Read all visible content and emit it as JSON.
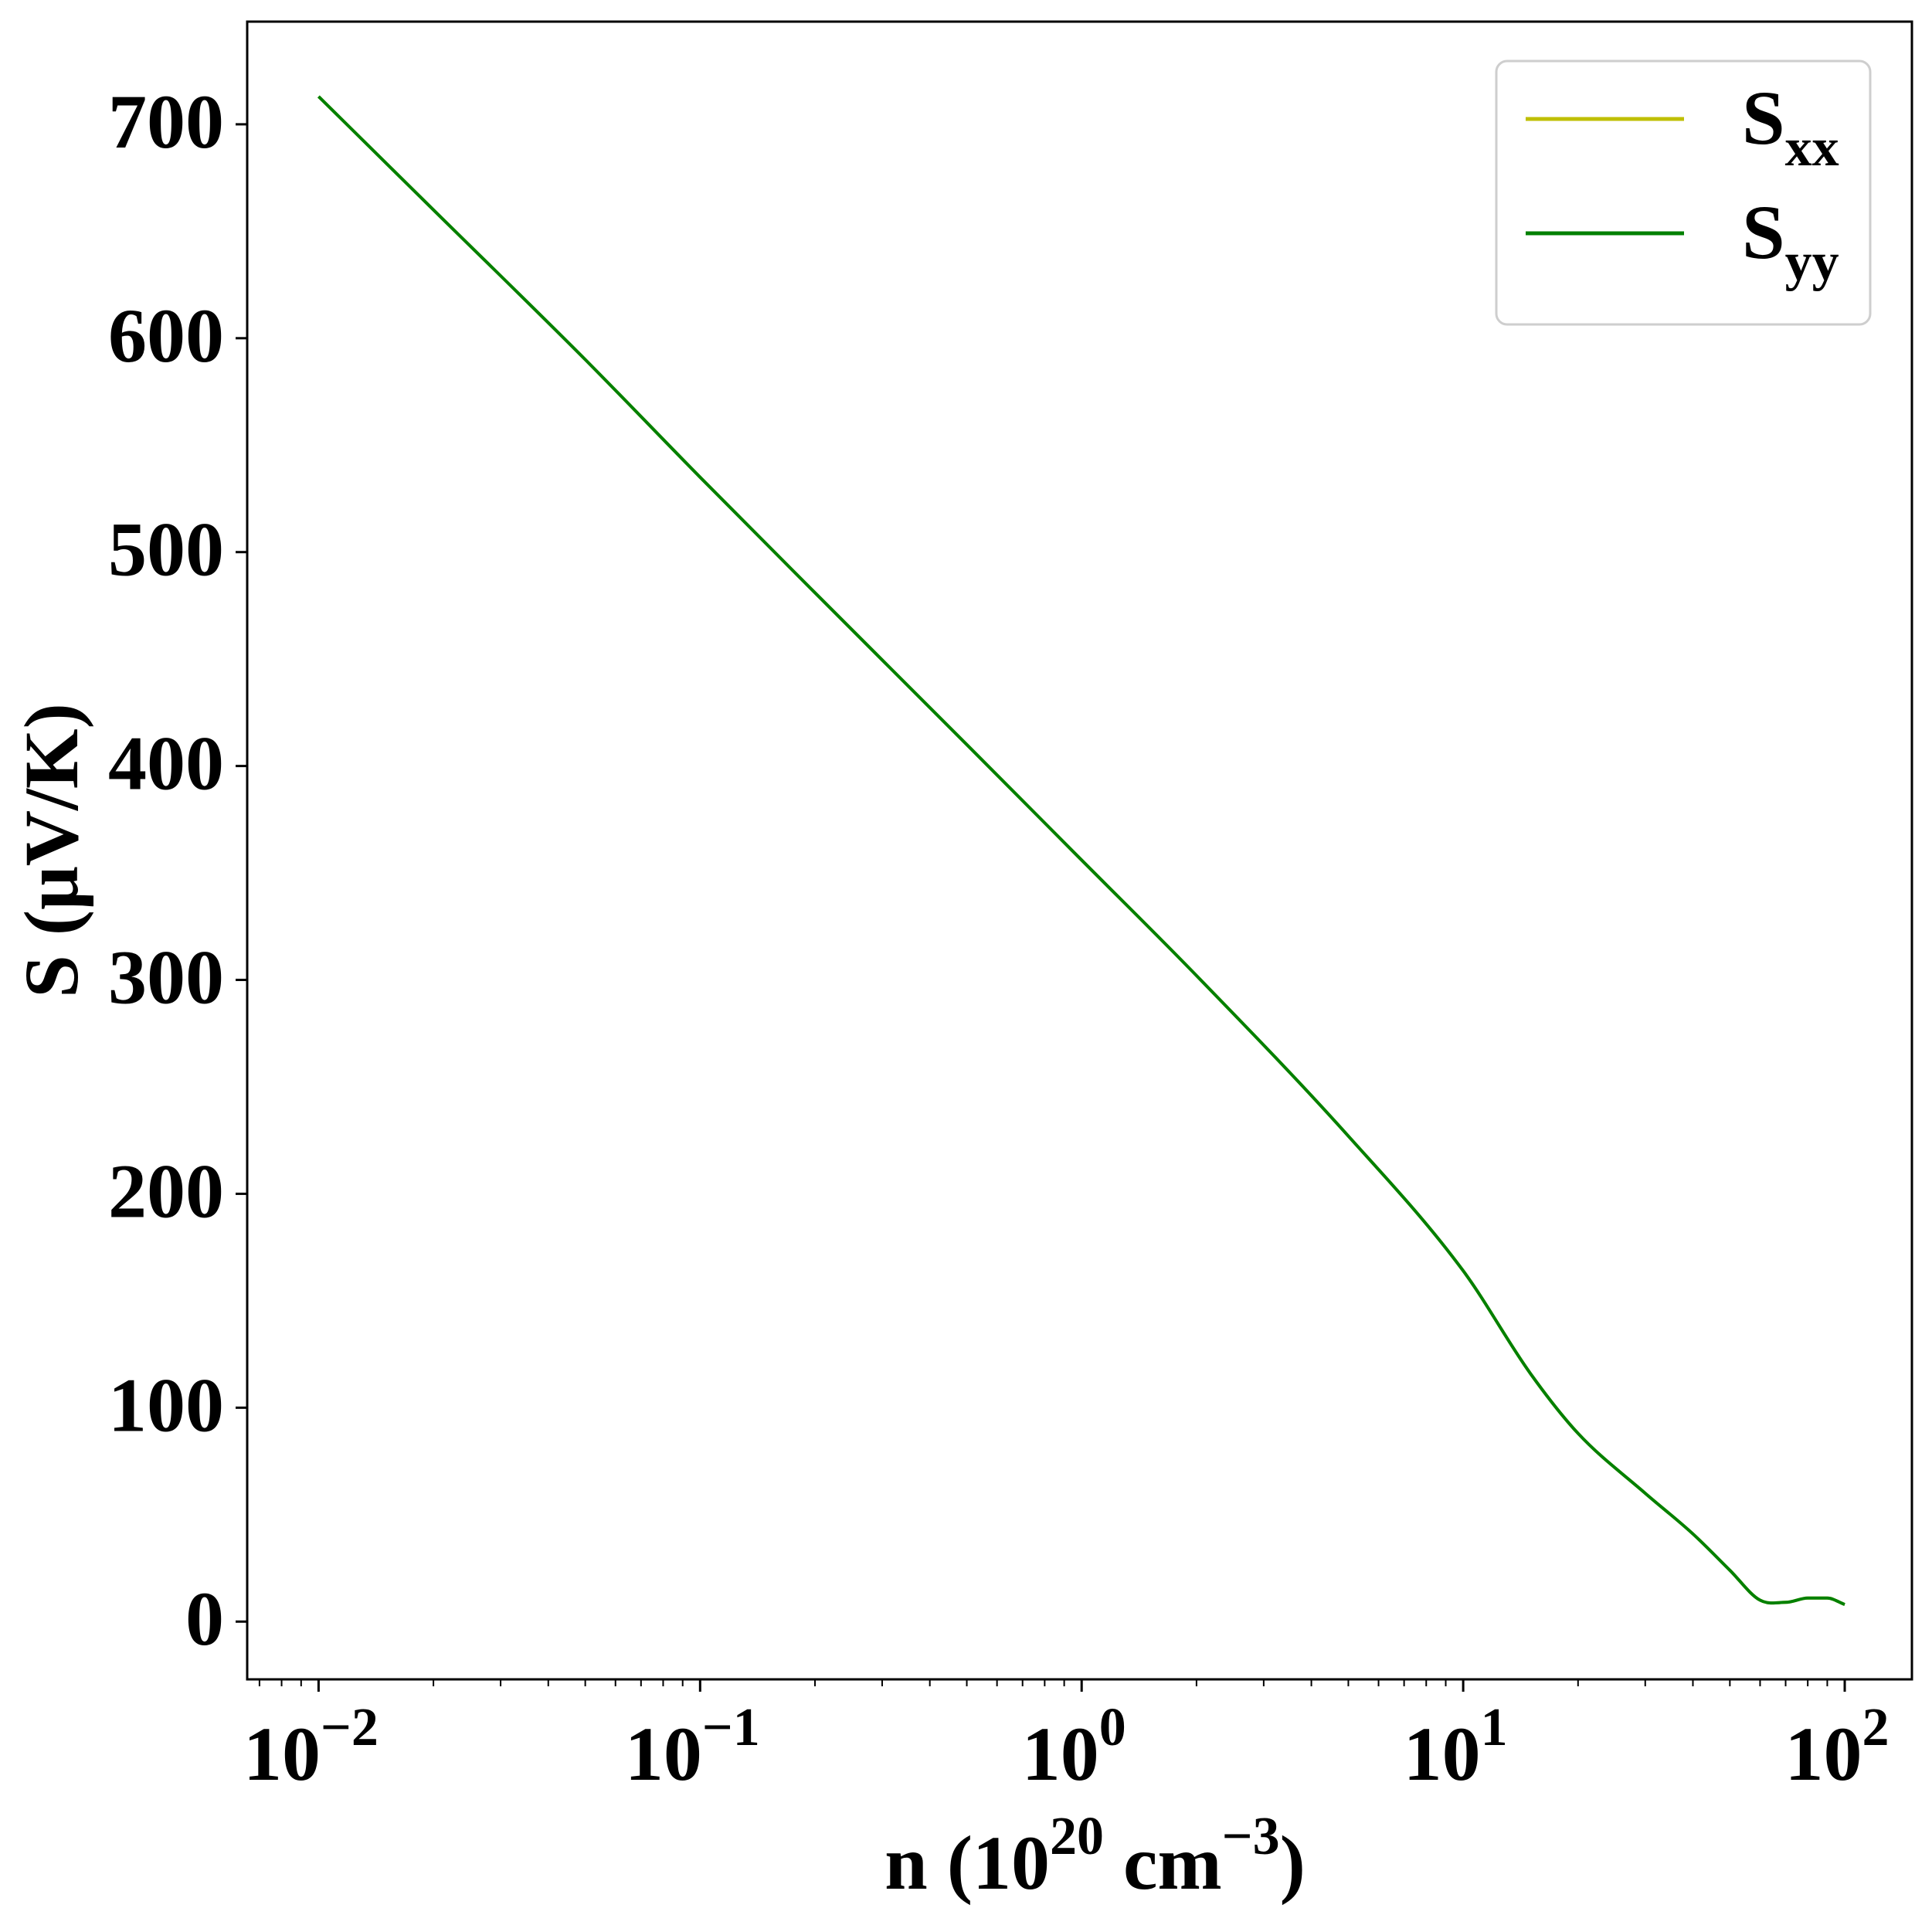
{
  "chart_data": {
    "type": "line",
    "x_scale": "log",
    "xlabel": {
      "base": "n (10",
      "sup1": "20",
      "mid": " cm",
      "sup2": "−3",
      "end": ")"
    },
    "ylabel": "S (μV/K)",
    "xlim": [
      0.0065,
      150
    ],
    "ylim": [
      -27,
      748
    ],
    "x_ticks": [
      {
        "value": 0.01,
        "base": "10",
        "exp": "−2"
      },
      {
        "value": 0.1,
        "base": "10",
        "exp": "−1"
      },
      {
        "value": 1,
        "base": "10",
        "exp": "0"
      },
      {
        "value": 10,
        "base": "10",
        "exp": "1"
      },
      {
        "value": 100,
        "base": "10",
        "exp": "2"
      }
    ],
    "y_ticks": [
      0,
      100,
      200,
      300,
      400,
      500,
      600,
      700
    ],
    "grid": false,
    "legend": {
      "position": "top-right",
      "entries": [
        {
          "main": "S",
          "sub": "xx",
          "color": "#bfbf00"
        },
        {
          "main": "S",
          "sub": "yy",
          "color": "#008000"
        }
      ]
    },
    "series": [
      {
        "name": "Sxx",
        "color": "#bfbf00",
        "x": [
          0.01,
          0.02,
          0.05,
          0.1,
          0.2,
          0.5,
          1,
          2,
          5,
          10,
          15,
          20,
          30,
          40,
          50,
          60,
          70,
          80,
          90,
          100
        ],
        "y": [
          713,
          660,
          590,
          535,
          481,
          410,
          356,
          302,
          227,
          164,
          116,
          88,
          60,
          41,
          24,
          10,
          9,
          11,
          11,
          8
        ]
      },
      {
        "name": "Syy",
        "color": "#008000",
        "x": [
          0.01,
          0.02,
          0.05,
          0.1,
          0.2,
          0.5,
          1,
          2,
          5,
          10,
          15,
          20,
          30,
          40,
          50,
          60,
          70,
          80,
          90,
          100
        ],
        "y": [
          713,
          660,
          590,
          535,
          481,
          410,
          356,
          302,
          227,
          164,
          116,
          88,
          60,
          41,
          24,
          10,
          9,
          11,
          11,
          8
        ]
      }
    ]
  }
}
